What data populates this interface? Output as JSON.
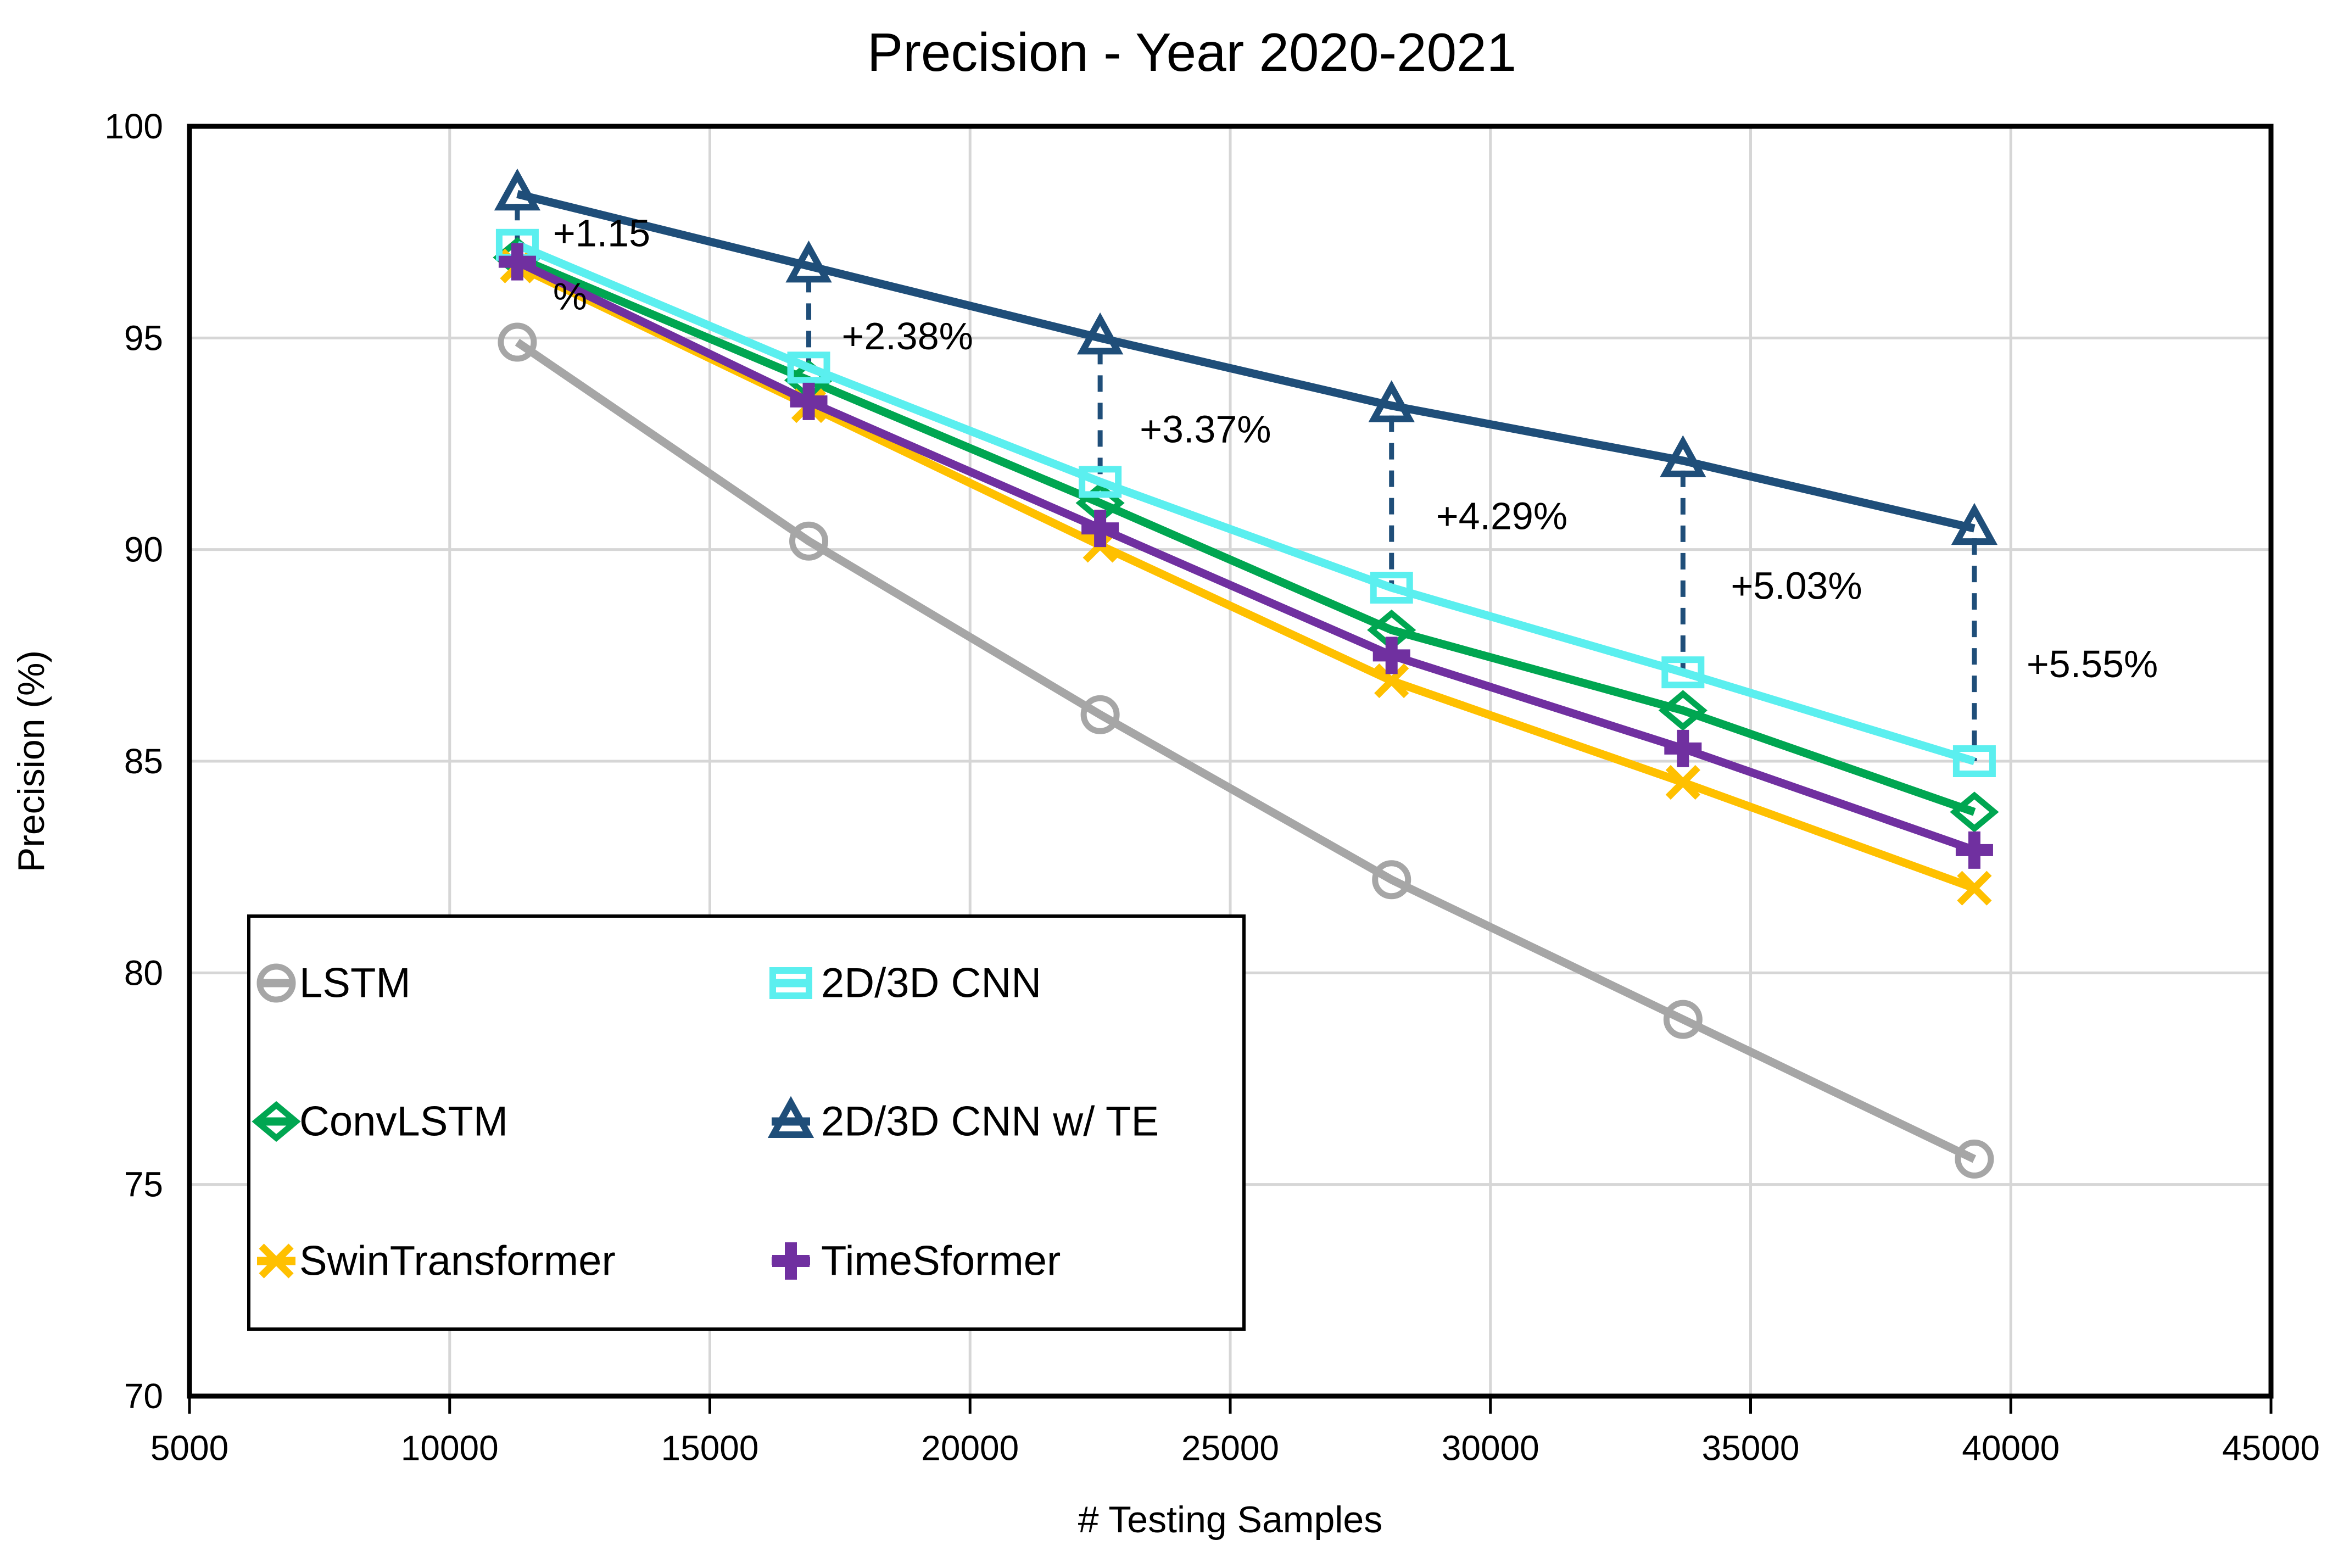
{
  "chart_data": {
    "type": "line",
    "title": "Precision - Year 2020-2021",
    "xlabel": "# Testing Samples",
    "ylabel": "Precision (%)",
    "xlim": [
      5000,
      45000
    ],
    "ylim": [
      70,
      100
    ],
    "x_ticks": [
      5000,
      10000,
      15000,
      20000,
      25000,
      30000,
      35000,
      40000,
      45000
    ],
    "y_ticks": [
      70,
      75,
      80,
      85,
      90,
      95,
      100
    ],
    "grid": true,
    "plot_border": true,
    "legend_position": "lower-left",
    "x": [
      11300,
      16900,
      22500,
      28100,
      33700,
      39300
    ],
    "series": [
      {
        "name": "LSTM",
        "color": "#A6A6A6",
        "marker": "circle",
        "values": [
          94.9,
          90.2,
          86.1,
          82.2,
          78.9,
          75.6
        ]
      },
      {
        "name": "ConvLSTM",
        "color": "#00A651",
        "marker": "diamond",
        "values": [
          96.9,
          94.0,
          91.1,
          88.1,
          86.2,
          83.8
        ]
      },
      {
        "name": "SwinTransformer",
        "color": "#FFC000",
        "marker": "x",
        "values": [
          96.7,
          93.4,
          90.1,
          86.9,
          84.5,
          82.0
        ]
      },
      {
        "name": "2D/3D CNN",
        "color": "#5BEFEF",
        "marker": "square",
        "values": [
          97.2,
          94.3,
          91.6,
          89.1,
          87.1,
          85.0
        ]
      },
      {
        "name": "2D/3D CNN w/ TE",
        "color": "#1F4E79",
        "marker": "triangle",
        "values": [
          98.4,
          96.7,
          95.0,
          93.4,
          92.1,
          90.5
        ]
      },
      {
        "name": "TimeSformer",
        "color": "#7030A0",
        "marker": "plus",
        "values": [
          96.8,
          93.5,
          90.5,
          87.5,
          85.3,
          82.9
        ]
      }
    ],
    "annotations": {
      "between_series": [
        "2D/3D CNN w/ TE",
        "2D/3D CNN"
      ],
      "connector_style": "dashed",
      "items": [
        {
          "x_index": 0,
          "lines": [
            "+1.15",
            "%"
          ]
        },
        {
          "x_index": 1,
          "lines": [
            "+2.38%"
          ]
        },
        {
          "x_index": 2,
          "lines": [
            "+3.37%"
          ]
        },
        {
          "x_index": 3,
          "lines": [
            "+4.29%"
          ]
        },
        {
          "x_index": 4,
          "lines": [
            "+5.03%"
          ]
        },
        {
          "x_index": 5,
          "lines": [
            "+5.55%"
          ]
        }
      ]
    },
    "legend": {
      "rows": [
        [
          "LSTM",
          "2D/3D CNN"
        ],
        [
          "ConvLSTM",
          "2D/3D CNN w/ TE"
        ],
        [
          "SwinTransformer",
          "TimeSformer"
        ]
      ]
    },
    "colors": {
      "gridline": "#D6D6D6",
      "axis": "#000000",
      "text": "#000000",
      "background": "#FFFFFF"
    }
  }
}
